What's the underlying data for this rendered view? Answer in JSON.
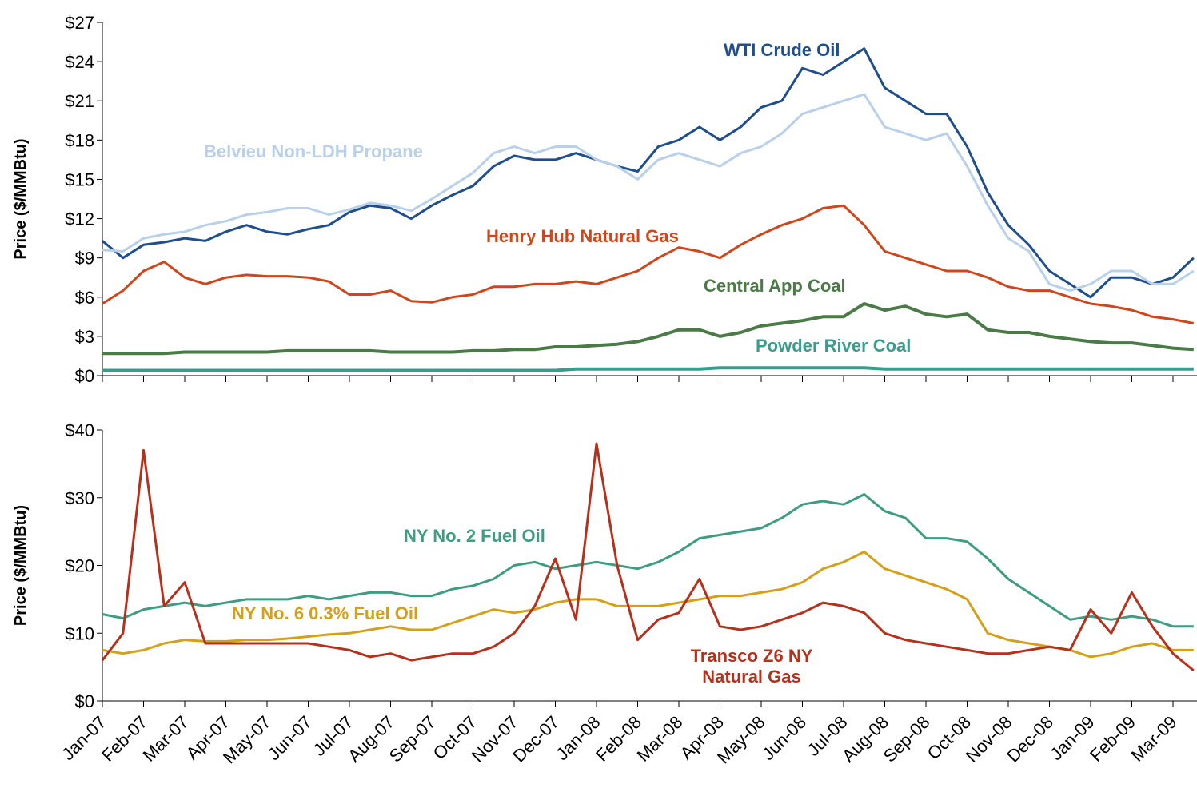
{
  "chart_data": [
    {
      "type": "line",
      "y_label": "Price ($/MMBtu)",
      "ylim": [
        0,
        27
      ],
      "yticks": [
        {
          "value": 0,
          "label": "$0"
        },
        {
          "value": 3,
          "label": "$3"
        },
        {
          "value": 6,
          "label": "$6"
        },
        {
          "value": 9,
          "label": "$9"
        },
        {
          "value": 12,
          "label": "$12"
        },
        {
          "value": 15,
          "label": "$15"
        },
        {
          "value": 18,
          "label": "$18"
        },
        {
          "value": 21,
          "label": "$21"
        },
        {
          "value": 24,
          "label": "$24"
        },
        {
          "value": 27,
          "label": "$27"
        }
      ],
      "series": [
        {
          "name": "WTI Crude Oil",
          "color": "#1f4e8c",
          "values": [
            10.3,
            9.0,
            10.0,
            10.2,
            10.5,
            10.3,
            11.0,
            11.5,
            11.0,
            10.8,
            11.2,
            11.5,
            12.5,
            13.0,
            12.8,
            12.0,
            13.0,
            13.8,
            14.5,
            16.0,
            16.8,
            16.5,
            16.5,
            17.0,
            16.5,
            16.0,
            15.6,
            17.5,
            18.0,
            19.0,
            18.0,
            19.0,
            20.5,
            21.0,
            23.5,
            23.0,
            24.0,
            25.0,
            22.0,
            21.0,
            20.0,
            20.0,
            17.5,
            14.0,
            11.5,
            10.0,
            8.0,
            7.0,
            6.0,
            7.5,
            7.5,
            7.0,
            7.5,
            9.0
          ]
        },
        {
          "name": "Belvieu Non-LDH Propane",
          "color": "#b8d0ea",
          "values": [
            9.6,
            9.5,
            10.5,
            10.8,
            11.0,
            11.5,
            11.8,
            12.3,
            12.5,
            12.8,
            12.8,
            12.3,
            12.7,
            13.2,
            13.0,
            12.6,
            13.5,
            14.5,
            15.5,
            17.0,
            17.5,
            17.0,
            17.5,
            17.5,
            16.5,
            16.0,
            15.0,
            16.5,
            17.0,
            16.5,
            16.0,
            17.0,
            17.5,
            18.5,
            20.0,
            20.5,
            21.0,
            21.5,
            19.0,
            18.5,
            18.0,
            18.5,
            16.0,
            13.0,
            10.5,
            9.5,
            7.0,
            6.5,
            7.0,
            8.0,
            8.0,
            7.0,
            7.0,
            8.0
          ]
        },
        {
          "name": "Henry Hub Natural Gas",
          "color": "#d0461b",
          "values": [
            5.5,
            6.5,
            8.0,
            8.7,
            7.5,
            7.0,
            7.5,
            7.7,
            7.6,
            7.6,
            7.5,
            7.2,
            6.2,
            6.2,
            6.5,
            5.7,
            5.6,
            6.0,
            6.2,
            6.8,
            6.8,
            7.0,
            7.0,
            7.2,
            7.0,
            7.5,
            8.0,
            9.0,
            9.8,
            9.5,
            9.0,
            10.0,
            10.8,
            11.5,
            12.0,
            12.8,
            13.0,
            11.5,
            9.5,
            9.0,
            8.5,
            8.0,
            8.0,
            7.5,
            6.8,
            6.5,
            6.5,
            6.0,
            5.5,
            5.3,
            5.0,
            4.5,
            4.3,
            4.0
          ]
        },
        {
          "name": "Central App Coal",
          "color": "#4a7a45",
          "values": [
            1.7,
            1.7,
            1.7,
            1.7,
            1.8,
            1.8,
            1.8,
            1.8,
            1.8,
            1.9,
            1.9,
            1.9,
            1.9,
            1.9,
            1.8,
            1.8,
            1.8,
            1.8,
            1.9,
            1.9,
            2.0,
            2.0,
            2.2,
            2.2,
            2.3,
            2.4,
            2.6,
            3.0,
            3.5,
            3.5,
            3.0,
            3.3,
            3.8,
            4.0,
            4.2,
            4.5,
            4.5,
            5.5,
            5.0,
            5.3,
            4.7,
            4.5,
            4.7,
            3.5,
            3.3,
            3.3,
            3.0,
            2.8,
            2.6,
            2.5,
            2.5,
            2.3,
            2.1,
            2.0
          ]
        },
        {
          "name": "Powder River Coal",
          "color": "#3a9c8c",
          "values": [
            0.4,
            0.4,
            0.4,
            0.4,
            0.4,
            0.4,
            0.4,
            0.4,
            0.4,
            0.4,
            0.4,
            0.4,
            0.4,
            0.4,
            0.4,
            0.4,
            0.4,
            0.4,
            0.4,
            0.4,
            0.4,
            0.4,
            0.4,
            0.5,
            0.5,
            0.5,
            0.5,
            0.5,
            0.5,
            0.5,
            0.6,
            0.6,
            0.6,
            0.6,
            0.6,
            0.6,
            0.6,
            0.6,
            0.5,
            0.5,
            0.5,
            0.5,
            0.5,
            0.5,
            0.5,
            0.5,
            0.5,
            0.5,
            0.5,
            0.5,
            0.5,
            0.5,
            0.5,
            0.5
          ]
        }
      ]
    },
    {
      "type": "line",
      "y_label": "Price ($/MMBtu)",
      "categories": [
        "Jan-07",
        null,
        "Feb-07",
        null,
        "Mar-07",
        null,
        "Apr-07",
        null,
        "May-07",
        null,
        "Jun-07",
        null,
        "Jul-07",
        null,
        "Aug-07",
        null,
        "Sep-07",
        null,
        "Oct-07",
        null,
        "Nov-07",
        null,
        "Dec-07",
        null,
        "Jan-08",
        null,
        "Feb-08",
        null,
        "Mar-08",
        null,
        "Apr-08",
        null,
        "May-08",
        null,
        "Jun-08",
        null,
        "Jul-08",
        null,
        "Aug-08",
        null,
        "Sep-08",
        null,
        "Oct-08",
        null,
        "Nov-08",
        null,
        "Dec-08",
        null,
        "Jan-09",
        null,
        "Feb-09",
        null,
        "Mar-09",
        null
      ],
      "ylim": [
        0,
        40
      ],
      "yticks": [
        {
          "value": 0,
          "label": "$0"
        },
        {
          "value": 10,
          "label": "$10"
        },
        {
          "value": 20,
          "label": "$20"
        },
        {
          "value": 30,
          "label": "$30"
        },
        {
          "value": 40,
          "label": "$40"
        }
      ],
      "series": [
        {
          "name": "NY No. 2 Fuel Oil",
          "color": "#3e9d80",
          "values": [
            12.8,
            12.2,
            13.5,
            14.0,
            14.5,
            14.0,
            14.5,
            15.0,
            15.0,
            15.0,
            15.5,
            15.0,
            15.5,
            16.0,
            16.0,
            15.5,
            15.5,
            16.5,
            17.0,
            18.0,
            20.0,
            20.5,
            19.5,
            20.0,
            20.5,
            20.0,
            19.5,
            20.5,
            22.0,
            24.0,
            24.5,
            25.0,
            25.5,
            27.0,
            29.0,
            29.5,
            29.0,
            30.5,
            28.0,
            27.0,
            24.0,
            24.0,
            23.5,
            21.0,
            18.0,
            16.0,
            14.0,
            12.0,
            12.5,
            12.0,
            12.5,
            12.0,
            11.0,
            11.0
          ]
        },
        {
          "name": "NY No. 6 0.3% Fuel Oil",
          "color": "#d4a017",
          "values": [
            7.5,
            7.0,
            7.5,
            8.5,
            9.0,
            8.8,
            8.8,
            9.0,
            9.0,
            9.2,
            9.5,
            9.8,
            10.0,
            10.5,
            11.0,
            10.5,
            10.5,
            11.5,
            12.5,
            13.5,
            13.0,
            13.5,
            14.5,
            15.0,
            15.0,
            14.0,
            14.0,
            14.0,
            14.5,
            15.0,
            15.5,
            15.5,
            16.0,
            16.5,
            17.5,
            19.5,
            20.5,
            22.0,
            19.5,
            18.5,
            17.5,
            16.5,
            15.0,
            10.0,
            9.0,
            8.5,
            8.0,
            7.5,
            6.5,
            7.0,
            8.0,
            8.5,
            7.5,
            7.5
          ]
        },
        {
          "name": "Transco Z6 NY Natural Gas",
          "color": "#b5311c",
          "values": [
            6.0,
            10.0,
            37.0,
            14.0,
            17.5,
            8.5,
            8.5,
            8.5,
            8.5,
            8.5,
            8.5,
            8.0,
            7.5,
            6.5,
            7.0,
            6.0,
            6.5,
            7.0,
            7.0,
            8.0,
            10.0,
            14.0,
            21.0,
            12.0,
            38.0,
            20.0,
            9.0,
            12.0,
            13.0,
            18.0,
            11.0,
            10.5,
            11.0,
            12.0,
            13.0,
            14.5,
            14.0,
            13.0,
            10.0,
            9.0,
            8.5,
            8.0,
            7.5,
            7.0,
            7.0,
            7.5,
            8.0,
            7.5,
            13.5,
            10.0,
            16.0,
            11.0,
            7.0,
            4.5
          ]
        }
      ]
    }
  ]
}
